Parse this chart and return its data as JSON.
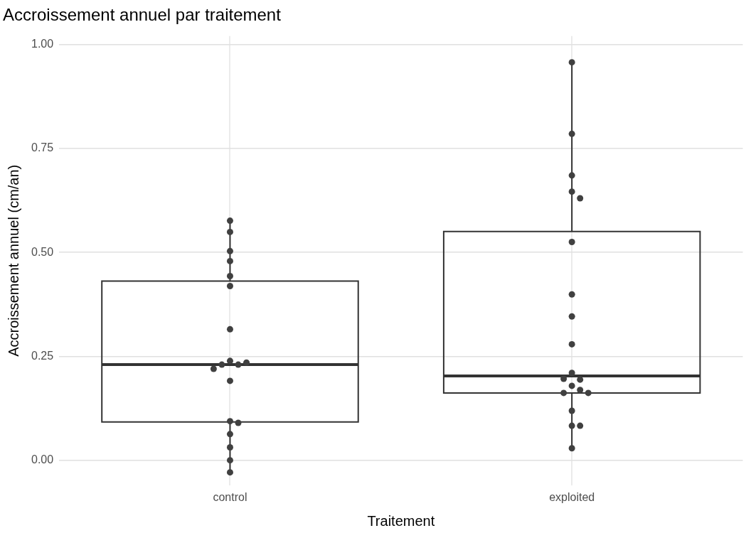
{
  "chart_data": {
    "type": "box",
    "title": "Accroissement annuel par traitement",
    "xlabel": "Traitement",
    "ylabel": "Accroissement annuel (cm/an)",
    "categories": [
      "control",
      "exploited"
    ],
    "ylim": [
      -0.06,
      1.02
    ],
    "yticks": [
      {
        "value": 0,
        "label": "0.00"
      },
      {
        "value": 0.25,
        "label": "0.25"
      },
      {
        "value": 0.5,
        "label": "0.50"
      },
      {
        "value": 0.75,
        "label": "0.75"
      },
      {
        "value": 1,
        "label": "1.00"
      }
    ],
    "grid": true,
    "marker": "circle",
    "series": [
      {
        "type": "box",
        "color": "#333333",
        "boxes": [
          {
            "low": -0.029,
            "q1": 0.092,
            "median": 0.23,
            "q3": 0.431,
            "high": 0.576
          },
          {
            "low": 0.031,
            "q1": 0.162,
            "median": 0.203,
            "q3": 0.55,
            "high": 0.957
          }
        ]
      },
      {
        "type": "scatter",
        "color": "#404040",
        "x": [
          "control",
          "control",
          "control",
          "control",
          "control",
          "control",
          "control",
          "control",
          "control",
          "control",
          "control",
          "control",
          "control",
          "control",
          "control",
          "control",
          "control",
          "control",
          "control",
          "exploited",
          "exploited",
          "exploited",
          "exploited",
          "exploited",
          "exploited",
          "exploited",
          "exploited",
          "exploited",
          "exploited",
          "exploited",
          "exploited",
          "exploited",
          "exploited",
          "exploited",
          "exploited",
          "exploited",
          "exploited",
          "exploited",
          "exploited"
        ],
        "values": [
          0.576,
          0.549,
          0.503,
          0.479,
          0.443,
          0.419,
          0.315,
          0.239,
          0.23,
          0.23,
          0.235,
          0.22,
          0.191,
          0.094,
          0.09,
          0.063,
          0.031,
          0.0,
          -0.029,
          0.957,
          0.785,
          0.685,
          0.646,
          0.63,
          0.525,
          0.399,
          0.346,
          0.279,
          0.21,
          0.194,
          0.196,
          0.179,
          0.169,
          0.162,
          0.162,
          0.119,
          0.083,
          0.083,
          0.029
        ]
      }
    ]
  }
}
